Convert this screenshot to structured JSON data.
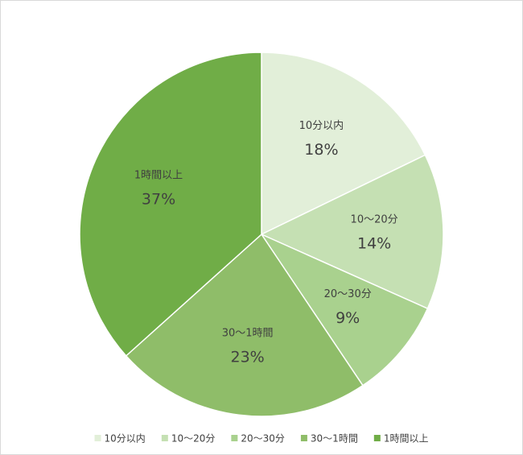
{
  "chart_data": {
    "type": "pie",
    "categories": [
      "10分以内",
      "10〜20分",
      "20〜30分",
      "30〜1時間",
      "1時間以上"
    ],
    "values": [
      18,
      14,
      9,
      23,
      37
    ],
    "value_labels": [
      "18%",
      "14%",
      "9%",
      "23%",
      "37%"
    ],
    "colors": [
      "#e2efd9",
      "#c5e0b3",
      "#a9d18e",
      "#8fbd69",
      "#70ad47"
    ],
    "legend": "bottom"
  }
}
